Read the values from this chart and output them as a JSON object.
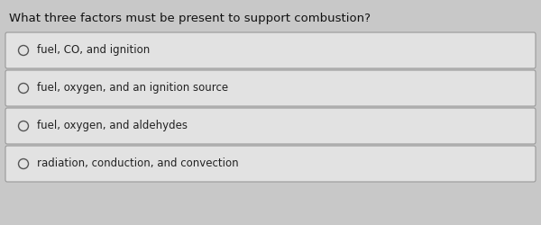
{
  "question": "What three factors must be present to support combustion?",
  "options": [
    "fuel, CO, and ignition",
    "fuel, oxygen, and an ignition source",
    "fuel, oxygen, and aldehydes",
    "radiation, conduction, and convection"
  ],
  "background_color": "#c8c8c8",
  "box_facecolor": "#e2e2e2",
  "box_edgecolor": "#999999",
  "question_fontsize": 9.5,
  "option_fontsize": 8.5,
  "question_color": "#111111",
  "option_color": "#222222",
  "circle_edge_color": "#555555",
  "circle_face_color": "#e2e2e2"
}
